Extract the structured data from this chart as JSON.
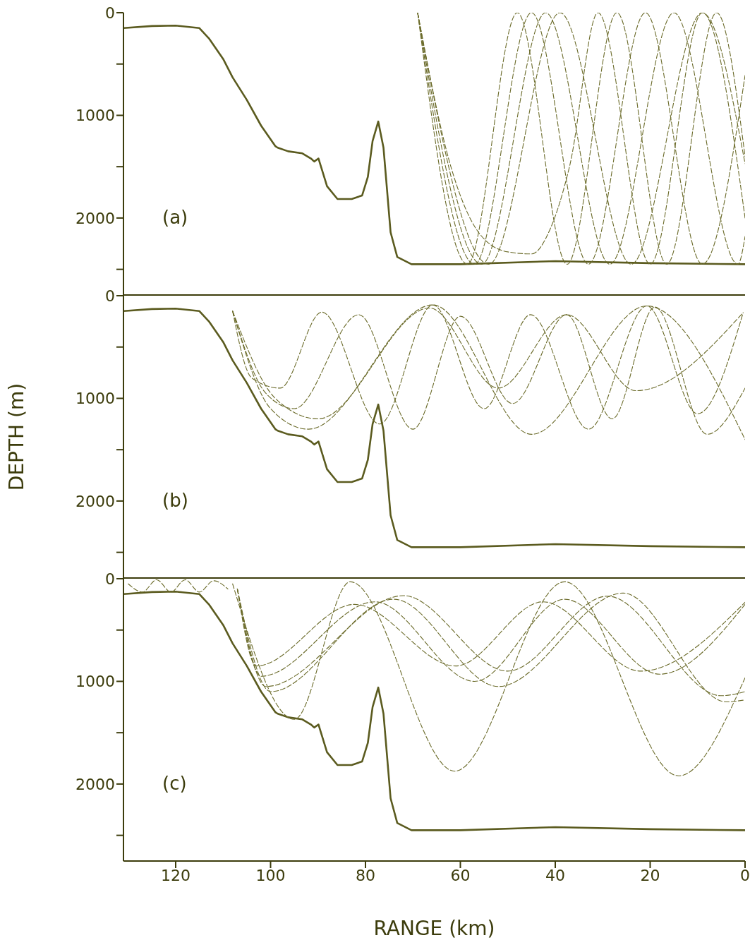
{
  "chart_data": [
    {
      "type": "line",
      "annotations": [
        "(a)"
      ],
      "xlim": [
        131,
        0
      ],
      "xticks": [
        120,
        100,
        80,
        60,
        40,
        20,
        0
      ],
      "ylim": [
        2750,
        0
      ],
      "yticks": [
        0,
        {
          "value": 500,
          "label": null
        },
        1000,
        {
          "value": 1500,
          "label": null
        },
        2000,
        {
          "value": 2500,
          "label": null
        }
      ],
      "tick_labels": "y",
      "grid": false,
      "series": [
        {
          "color": "#5b5b1f",
          "line_style": "solid",
          "x": [
            131,
            125,
            120,
            115,
            113,
            110,
            108,
            105,
            102,
            99,
            98.5,
            96.3,
            93.3,
            91.5,
            90.8,
            89.9,
            88.1,
            85.9,
            82.9,
            80.7,
            79.5,
            78.5,
            77.3,
            76.2,
            74.7,
            73.3,
            70.3,
            60,
            40,
            20,
            0
          ],
          "values": [
            150,
            130,
            125,
            150,
            250,
            450,
            630,
            850,
            1100,
            1300,
            1315,
            1350,
            1370,
            1420,
            1450,
            1420,
            1690,
            1815,
            1815,
            1780,
            1600,
            1250,
            1060,
            1315,
            2140,
            2380,
            2450,
            2450,
            2420,
            2440,
            2450
          ]
        },
        {
          "color": "#6b6b2a",
          "line_style": "dashed",
          "x": [
            69,
            58.5,
            48,
            37.5,
            27,
            16.5,
            6,
            0
          ],
          "values": [
            0,
            2450,
            0,
            2450,
            0,
            2450,
            0,
            1400
          ]
        },
        {
          "color": "#6b6b2a",
          "line_style": "dashed",
          "x": [
            69,
            57,
            45,
            33,
            21,
            9,
            0
          ],
          "values": [
            0,
            2450,
            0,
            2450,
            0,
            2450,
            610
          ]
        },
        {
          "color": "#6b6b2a",
          "line_style": "dashed",
          "x": [
            69,
            55.5,
            42,
            28.5,
            15,
            1.5,
            0
          ],
          "values": [
            0,
            2450,
            0,
            2450,
            0,
            2450,
            2180
          ]
        },
        {
          "color": "#6b6b2a",
          "line_style": "dashed",
          "x": [
            69,
            54,
            39,
            24,
            9,
            0
          ],
          "values": [
            0,
            2450,
            0,
            2450,
            0,
            1470
          ]
        },
        {
          "color": "#6b6b2a",
          "line_style": "dashed",
          "x": [
            69,
            62,
            56,
            50,
            45,
            41,
            37,
            31,
            20,
            9,
            0
          ],
          "values": [
            0,
            1500,
            2150,
            2330,
            2350,
            2100,
            1500,
            0,
            2450,
            0,
            2000
          ]
        }
      ]
    },
    {
      "type": "line",
      "ylabel": "DEPTH (m)",
      "annotations": [
        "(b)"
      ],
      "xlim": [
        131,
        0
      ],
      "xticks": [
        120,
        100,
        80,
        60,
        40,
        20,
        0
      ],
      "ylim": [
        2750,
        0
      ],
      "yticks": [
        0,
        {
          "value": 500,
          "label": null
        },
        1000,
        {
          "value": 1500,
          "label": null
        },
        2000,
        {
          "value": 2500,
          "label": null
        }
      ],
      "tick_labels": "y",
      "grid": false,
      "series": [
        {
          "color": "#5b5b1f",
          "line_style": "solid",
          "x": [
            131,
            125,
            120,
            115,
            113,
            110,
            108,
            105,
            102,
            99,
            98.5,
            96.3,
            93.3,
            91.5,
            90.8,
            89.9,
            88.1,
            85.9,
            82.9,
            80.7,
            79.5,
            78.5,
            77.3,
            76.2,
            74.7,
            73.3,
            70.3,
            60,
            40,
            20,
            0
          ],
          "values": [
            150,
            130,
            125,
            150,
            250,
            450,
            630,
            850,
            1100,
            1300,
            1315,
            1350,
            1370,
            1420,
            1450,
            1420,
            1690,
            1815,
            1815,
            1780,
            1600,
            1250,
            1060,
            1315,
            2140,
            2380,
            2450,
            2450,
            2420,
            2440,
            2450
          ]
        },
        {
          "color": "#6b6b2a",
          "line_style": "dashed",
          "x": [
            108,
            104,
            98,
            89.2,
            77,
            65.8,
            55,
            45.2,
            33,
            20.7,
            10,
            0.4
          ],
          "values": [
            150,
            800,
            900,
            160,
            1250,
            90,
            1100,
            185,
            1300,
            100,
            1150,
            165
          ]
        },
        {
          "color": "#6b6b2a",
          "line_style": "dashed",
          "x": [
            108,
            101,
            95,
            81.4,
            70,
            60,
            49,
            37.6,
            28,
            19,
            8,
            0
          ],
          "values": [
            150,
            950,
            1100,
            185,
            1300,
            200,
            1050,
            185,
            1200,
            110,
            1350,
            900
          ]
        },
        {
          "color": "#6b6b2a",
          "line_style": "dashed",
          "x": [
            108,
            100,
            92,
            65.8,
            45,
            20.7,
            0
          ],
          "values": [
            150,
            1100,
            1300,
            90,
            1350,
            100,
            1400
          ]
        },
        {
          "color": "#6b6b2a",
          "line_style": "dashed",
          "x": [
            108,
            99,
            90,
            66.5,
            52,
            37.6,
            23,
            0.4
          ],
          "values": [
            150,
            1000,
            1200,
            120,
            900,
            185,
            925,
            165
          ]
        }
      ]
    },
    {
      "type": "line",
      "xlabel": "RANGE (km)",
      "annotations": [
        "(c)"
      ],
      "xlim": [
        131,
        0
      ],
      "xticks": [
        120,
        100,
        80,
        60,
        40,
        20,
        0
      ],
      "ylim": [
        2750,
        0
      ],
      "yticks": [
        0,
        {
          "value": 500,
          "label": null
        },
        1000,
        {
          "value": 1500,
          "label": null
        },
        2000,
        {
          "value": 2500,
          "label": null
        }
      ],
      "grid": false,
      "series": [
        {
          "color": "#5b5b1f",
          "line_style": "solid",
          "x": [
            131,
            125,
            120,
            115,
            113,
            110,
            108,
            105,
            102,
            99,
            98.5,
            96.3,
            93.3,
            91.5,
            90.8,
            89.9,
            88.1,
            85.9,
            82.9,
            80.7,
            79.5,
            78.5,
            77.3,
            76.2,
            74.7,
            73.3,
            70.3,
            60,
            40,
            20,
            0
          ],
          "values": [
            150,
            130,
            125,
            150,
            250,
            450,
            630,
            850,
            1100,
            1300,
            1315,
            1350,
            1370,
            1420,
            1450,
            1420,
            1690,
            1815,
            1815,
            1780,
            1600,
            1250,
            1060,
            1315,
            2140,
            2380,
            2450,
            2450,
            2420,
            2440,
            2450
          ]
        },
        {
          "color": "#6b6b2a",
          "line_style": "dashed",
          "x": [
            108,
            95,
            83.2,
            61.2,
            38,
            14,
            0
          ],
          "values": [
            50,
            1370,
            30,
            1875,
            30,
            1920,
            965
          ]
        },
        {
          "color": "#6b6b2a",
          "line_style": "dashed",
          "x": [
            107,
            103,
            82.3,
            61,
            42.6,
            22,
            0
          ],
          "values": [
            100,
            850,
            250,
            850,
            225,
            900,
            230
          ]
        },
        {
          "color": "#6b6b2a",
          "line_style": "dashed",
          "x": [
            107,
            102,
            78,
            57,
            38,
            18,
            0
          ],
          "values": [
            100,
            950,
            225,
            1000,
            200,
            930,
            250
          ]
        },
        {
          "color": "#6b6b2a",
          "line_style": "dashed",
          "x": [
            107,
            101,
            72,
            50,
            29,
            5,
            0
          ],
          "values": [
            100,
            1050,
            165,
            900,
            170,
            1140,
            1100
          ]
        },
        {
          "color": "#6b6b2a",
          "line_style": "dashed",
          "x": [
            107,
            100,
            74,
            52,
            25.7,
            3.9,
            0
          ],
          "values": [
            100,
            1100,
            200,
            1050,
            140,
            1200,
            1180
          ]
        },
        {
          "color": "#6b6b2a",
          "line_style": "dashed",
          "x": [
            130,
            127,
            124,
            121,
            118,
            115,
            112,
            109
          ],
          "values": [
            50,
            130,
            10,
            130,
            10,
            130,
            20,
            100
          ]
        }
      ]
    }
  ]
}
